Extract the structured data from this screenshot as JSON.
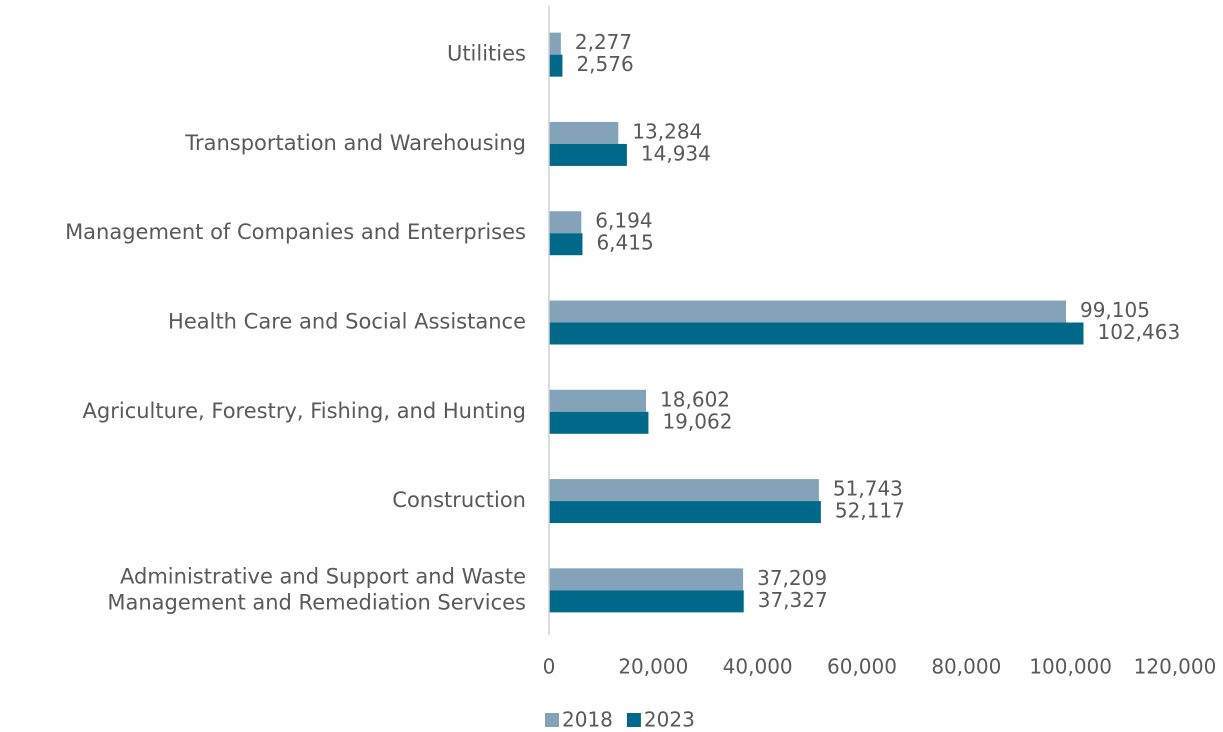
{
  "chart_data": {
    "type": "barh",
    "categories": [
      "Utilities",
      "Transportation and Warehousing",
      "Management of Companies and Enterprises",
      "Health Care and Social Assistance",
      "Agriculture, Forestry, Fishing, and Hunting",
      "Construction",
      "Administrative and Support and Waste\nManagement and Remediation Services"
    ],
    "series": [
      {
        "name": "2018",
        "color": "#84a3b8",
        "values": [
          2277,
          13284,
          6194,
          99105,
          18602,
          51743,
          37209
        ],
        "value_labels": [
          "2,277",
          "13,284",
          "6,194",
          "99,105",
          "18,602",
          "51,743",
          "37,209"
        ]
      },
      {
        "name": "2023",
        "color": "#00698a",
        "values": [
          2576,
          14934,
          6415,
          102463,
          19062,
          52117,
          37327
        ],
        "value_labels": [
          "2,576",
          "14,934",
          "6,415",
          "102,463",
          "19,062",
          "52,117",
          "37,327"
        ]
      }
    ],
    "xlim": [
      0,
      120000
    ],
    "xticks": [
      0,
      {
        "value": 20000,
        "label": "20,000"
      },
      {
        "value": 40000,
        "label": "40,000"
      },
      {
        "value": 60000,
        "label": "60,000"
      },
      {
        "value": 80000,
        "label": "80,000"
      },
      {
        "value": 100000,
        "label": "100,000"
      },
      {
        "value": 120000,
        "label": "120,000"
      }
    ],
    "grid": false,
    "legend": "bottom"
  }
}
